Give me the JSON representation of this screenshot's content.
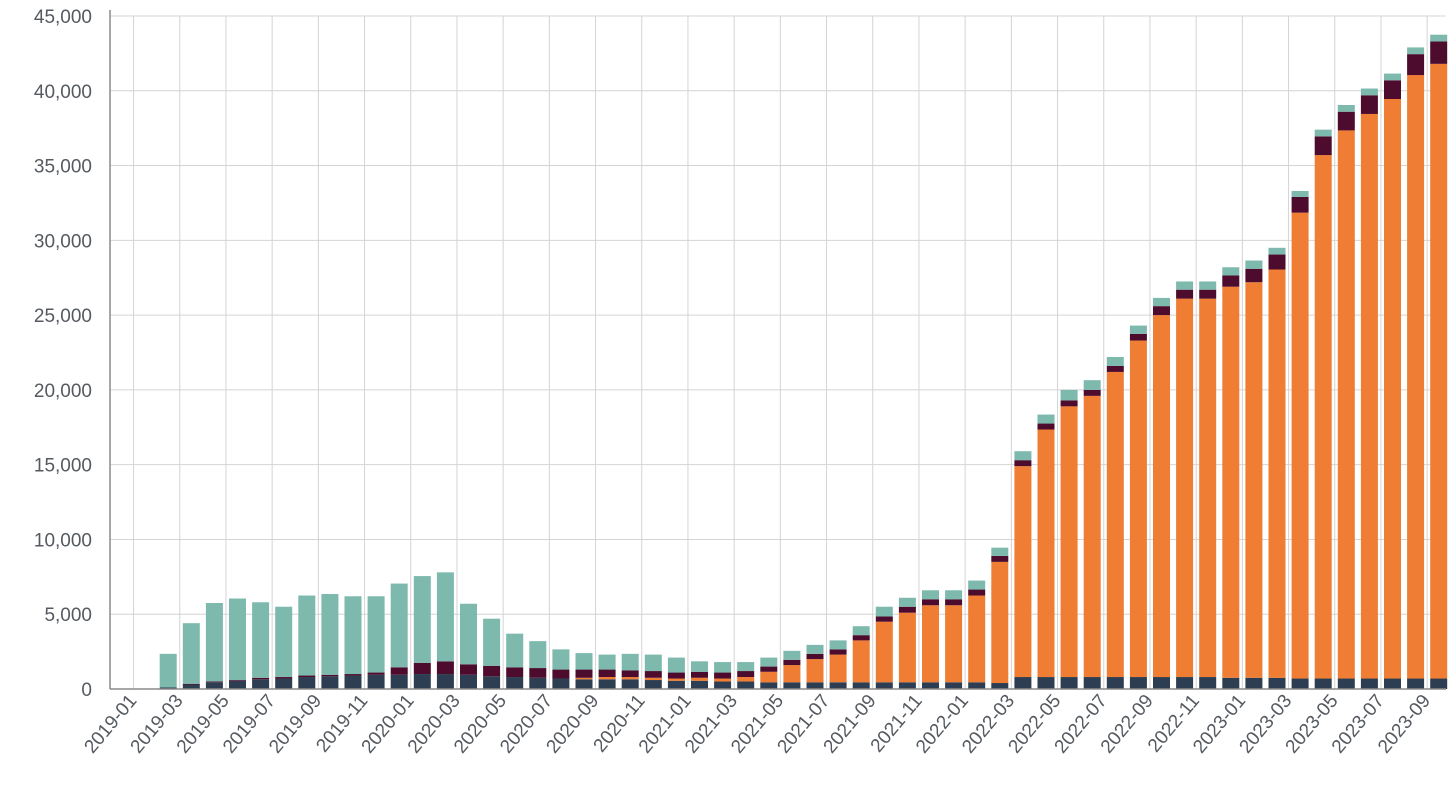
{
  "chart_data": {
    "type": "bar",
    "stacked": true,
    "grid": true,
    "legend": "none",
    "ylim": [
      0,
      45000
    ],
    "y_ticks": [
      0,
      5000,
      10000,
      15000,
      20000,
      25000,
      30000,
      35000,
      40000,
      45000
    ],
    "y_tick_labels": [
      "0",
      "5,000",
      "10,000",
      "15,000",
      "20,000",
      "25,000",
      "30,000",
      "35,000",
      "40,000",
      "45,000"
    ],
    "x_tick_labels": [
      "2019-01",
      "2019-03",
      "2019-05",
      "2019-07",
      "2019-09",
      "2019-11",
      "2020-01",
      "2020-03",
      "2020-05",
      "2020-07",
      "2020-09",
      "2020-11",
      "2021-01",
      "2021-03",
      "2021-05",
      "2021-07",
      "2021-09",
      "2021-11",
      "2022-01",
      "2022-03",
      "2022-05",
      "2022-07",
      "2022-09",
      "2022-11",
      "2023-01",
      "2023-03",
      "2023-05",
      "2023-07",
      "2023-09"
    ],
    "categories": [
      "2019-01",
      "2019-02",
      "2019-03",
      "2019-04",
      "2019-05",
      "2019-06",
      "2019-07",
      "2019-08",
      "2019-09",
      "2019-10",
      "2019-11",
      "2019-12",
      "2020-01",
      "2020-02",
      "2020-03",
      "2020-04",
      "2020-05",
      "2020-06",
      "2020-07",
      "2020-08",
      "2020-09",
      "2020-10",
      "2020-11",
      "2020-12",
      "2021-01",
      "2021-02",
      "2021-03",
      "2021-04",
      "2021-05",
      "2021-06",
      "2021-07",
      "2021-08",
      "2021-09",
      "2021-10",
      "2021-11",
      "2021-12",
      "2022-01",
      "2022-02",
      "2022-03",
      "2022-04",
      "2022-05",
      "2022-06",
      "2022-07",
      "2022-08",
      "2022-09",
      "2022-10",
      "2022-11",
      "2022-12",
      "2023-01",
      "2023-02",
      "2023-03",
      "2023-04",
      "2023-05",
      "2023-06",
      "2023-07",
      "2023-08",
      "2023-09",
      "2023-10"
    ],
    "series": [
      {
        "color": "#2e3e52",
        "values": [
          0,
          0,
          100,
          300,
          450,
          550,
          650,
          700,
          800,
          850,
          900,
          950,
          950,
          1000,
          1000,
          950,
          850,
          800,
          750,
          700,
          650,
          650,
          650,
          600,
          550,
          550,
          500,
          500,
          450,
          450,
          450,
          450,
          450,
          450,
          450,
          450,
          450,
          450,
          400,
          800,
          800,
          800,
          800,
          800,
          800,
          800,
          800,
          800,
          750,
          750,
          750,
          700,
          700,
          700,
          700,
          700,
          700,
          700
        ]
      },
      {
        "color": "#ef7d33",
        "values": [
          0,
          0,
          0,
          0,
          0,
          0,
          0,
          0,
          0,
          0,
          0,
          0,
          0,
          0,
          0,
          0,
          0,
          0,
          0,
          0,
          100,
          150,
          150,
          150,
          150,
          200,
          200,
          300,
          700,
          1150,
          1550,
          1850,
          2800,
          4050,
          4650,
          5150,
          5150,
          5800,
          8100,
          14100,
          16550,
          18100,
          18800,
          20400,
          22500,
          24200,
          25300,
          25300,
          26150,
          26450,
          27300,
          31150,
          35000,
          36650,
          37750,
          38750,
          40350,
          41100
        ]
      },
      {
        "color": "#4d0c2d",
        "values": [
          0,
          0,
          0,
          50,
          50,
          50,
          100,
          100,
          100,
          100,
          100,
          150,
          500,
          750,
          850,
          700,
          700,
          650,
          650,
          600,
          550,
          500,
          450,
          450,
          400,
          400,
          400,
          400,
          350,
          350,
          350,
          350,
          350,
          350,
          400,
          400,
          400,
          400,
          400,
          400,
          400,
          400,
          400,
          400,
          450,
          600,
          600,
          600,
          750,
          900,
          1000,
          1050,
          1250,
          1250,
          1250,
          1250,
          1400,
          1500
        ]
      },
      {
        "color": "#7db9ad",
        "values": [
          0,
          0,
          2250,
          4050,
          5250,
          5450,
          5050,
          4700,
          5350,
          5400,
          5200,
          5100,
          5600,
          5800,
          5950,
          4050,
          3150,
          2250,
          1800,
          1350,
          1100,
          1000,
          1100,
          1100,
          1000,
          700,
          700,
          600,
          600,
          600,
          600,
          600,
          600,
          650,
          600,
          600,
          600,
          600,
          550,
          600,
          600,
          700,
          650,
          600,
          550,
          550,
          550,
          550,
          550,
          550,
          450,
          400,
          450,
          450,
          450,
          450,
          450,
          450
        ]
      }
    ]
  }
}
